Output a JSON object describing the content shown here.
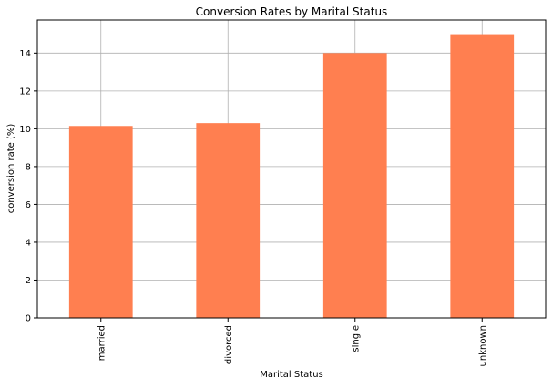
{
  "chart_data": {
    "type": "bar",
    "title": "Conversion Rates by Marital Status",
    "xlabel": "Marital Status",
    "ylabel": "conversion rate (%)",
    "categories": [
      "married",
      "divorced",
      "single",
      "unknown"
    ],
    "values": [
      10.15,
      10.3,
      14.0,
      15.0
    ],
    "ylim": [
      0,
      15.75
    ],
    "yticks": [
      0,
      2,
      4,
      6,
      8,
      10,
      12,
      14
    ],
    "ytick_labels": [
      "0",
      "2",
      "4",
      "6",
      "8",
      "10",
      "12",
      "14"
    ],
    "grid": true,
    "colors": {
      "bar": "#ff7f50",
      "grid": "#b0b0b0",
      "axis": "#000000"
    }
  }
}
